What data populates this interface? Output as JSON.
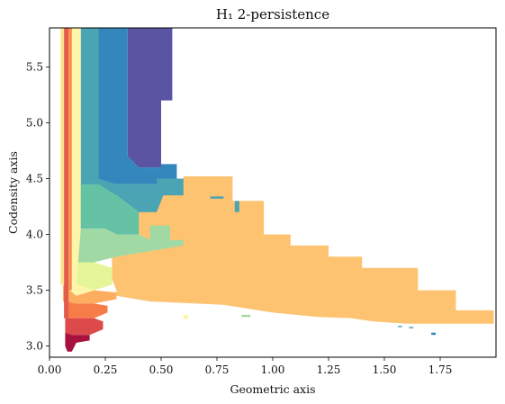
{
  "chart_data": {
    "type": "heatmap",
    "title": "H₁ 2-persistence",
    "xlabel": "Geometric axis",
    "ylabel": "Codensity axis",
    "xlim": [
      0.0,
      2.0
    ],
    "ylim": [
      2.9,
      5.85
    ],
    "xticks": [
      "0.00",
      "0.25",
      "0.50",
      "0.75",
      "1.00",
      "1.25",
      "1.50",
      "1.75"
    ],
    "xtick_values": [
      0.0,
      0.25,
      0.5,
      0.75,
      1.0,
      1.25,
      1.5,
      1.75
    ],
    "yticks": [
      "3.0",
      "3.5",
      "4.0",
      "4.5",
      "5.0",
      "5.5"
    ],
    "ytick_values": [
      3.0,
      3.5,
      4.0,
      4.5,
      5.0,
      5.5
    ],
    "grid": false,
    "legend": "none",
    "colormap": "Spectral",
    "regions": [
      {
        "name": "large-orange-region",
        "color": "#fdc371",
        "polygon": [
          [
            0.48,
            4.5
          ],
          [
            0.6,
            4.5
          ],
          [
            0.6,
            4.52
          ],
          [
            0.82,
            4.52
          ],
          [
            0.82,
            4.3
          ],
          [
            0.96,
            4.3
          ],
          [
            0.96,
            4.2
          ],
          [
            0.96,
            4.0
          ],
          [
            1.08,
            4.0
          ],
          [
            1.08,
            3.9
          ],
          [
            1.25,
            3.9
          ],
          [
            1.25,
            3.8
          ],
          [
            1.4,
            3.8
          ],
          [
            1.4,
            3.7
          ],
          [
            1.65,
            3.7
          ],
          [
            1.65,
            3.5
          ],
          [
            1.82,
            3.5
          ],
          [
            1.82,
            3.32
          ],
          [
            1.99,
            3.32
          ],
          [
            1.99,
            3.2
          ],
          [
            1.6,
            3.2
          ],
          [
            1.45,
            3.22
          ],
          [
            1.35,
            3.25
          ],
          [
            1.2,
            3.26
          ],
          [
            1.0,
            3.3
          ],
          [
            0.78,
            3.37
          ],
          [
            0.45,
            3.4
          ],
          [
            0.3,
            3.45
          ],
          [
            0.3,
            3.5
          ],
          [
            0.28,
            3.6
          ],
          [
            0.28,
            4.0
          ],
          [
            0.36,
            4.05
          ],
          [
            0.4,
            4.3
          ],
          [
            0.45,
            4.4
          ]
        ]
      },
      {
        "name": "dark-blue-purple-region",
        "color": "#5b54a2",
        "polygon": [
          [
            0.35,
            5.85
          ],
          [
            0.55,
            5.85
          ],
          [
            0.55,
            5.2
          ],
          [
            0.5,
            5.2
          ],
          [
            0.5,
            4.6
          ],
          [
            0.4,
            4.6
          ],
          [
            0.35,
            4.7
          ]
        ]
      },
      {
        "name": "blue-region",
        "color": "#3387bc",
        "polygon": [
          [
            0.2,
            5.85
          ],
          [
            0.35,
            5.85
          ],
          [
            0.35,
            4.7
          ],
          [
            0.4,
            4.6
          ],
          [
            0.5,
            4.6
          ],
          [
            0.5,
            4.45
          ],
          [
            0.4,
            4.45
          ],
          [
            0.3,
            4.45
          ],
          [
            0.2,
            4.5
          ]
        ]
      },
      {
        "name": "teal-region",
        "color": "#4ba4b3",
        "polygon": [
          [
            0.14,
            5.85
          ],
          [
            0.22,
            5.85
          ],
          [
            0.22,
            4.5
          ],
          [
            0.3,
            4.45
          ],
          [
            0.4,
            4.45
          ],
          [
            0.5,
            4.45
          ],
          [
            0.52,
            4.4
          ],
          [
            0.48,
            4.2
          ],
          [
            0.4,
            4.2
          ],
          [
            0.3,
            4.35
          ],
          [
            0.14,
            4.35
          ]
        ]
      },
      {
        "name": "green-teal-region",
        "color": "#66c2a5",
        "polygon": [
          [
            0.12,
            4.45
          ],
          [
            0.22,
            4.45
          ],
          [
            0.3,
            4.35
          ],
          [
            0.4,
            4.2
          ],
          [
            0.4,
            4.0
          ],
          [
            0.3,
            4.0
          ],
          [
            0.25,
            4.05
          ],
          [
            0.12,
            4.05
          ]
        ]
      },
      {
        "name": "light-green-region",
        "color": "#a1d9a4",
        "polygon": [
          [
            0.12,
            4.05
          ],
          [
            0.25,
            4.05
          ],
          [
            0.3,
            4.0
          ],
          [
            0.4,
            4.0
          ],
          [
            0.45,
            3.95
          ],
          [
            0.6,
            3.95
          ],
          [
            0.6,
            3.9
          ],
          [
            0.3,
            3.8
          ],
          [
            0.2,
            3.75
          ],
          [
            0.12,
            3.75
          ]
        ]
      },
      {
        "name": "yellow-green-region",
        "color": "#e6f598",
        "polygon": [
          [
            0.12,
            3.75
          ],
          [
            0.2,
            3.75
          ],
          [
            0.28,
            3.7
          ],
          [
            0.28,
            3.55
          ],
          [
            0.2,
            3.5
          ],
          [
            0.12,
            3.55
          ]
        ]
      },
      {
        "name": "pale-yellow-region",
        "color": "#fef5aa",
        "polygon": [
          [
            0.09,
            5.85
          ],
          [
            0.14,
            5.85
          ],
          [
            0.14,
            4.05
          ],
          [
            0.12,
            3.55
          ],
          [
            0.2,
            3.5
          ],
          [
            0.12,
            3.45
          ],
          [
            0.09,
            3.5
          ]
        ]
      },
      {
        "name": "light-orange-region",
        "color": "#fdad60",
        "polygon": [
          [
            0.06,
            3.55
          ],
          [
            0.12,
            3.45
          ],
          [
            0.2,
            3.5
          ],
          [
            0.3,
            3.48
          ],
          [
            0.3,
            3.42
          ],
          [
            0.2,
            3.38
          ],
          [
            0.12,
            3.38
          ],
          [
            0.06,
            3.4
          ]
        ]
      },
      {
        "name": "orange-region",
        "color": "#f67d4a",
        "polygon": [
          [
            0.07,
            3.4
          ],
          [
            0.12,
            3.38
          ],
          [
            0.2,
            3.38
          ],
          [
            0.26,
            3.36
          ],
          [
            0.26,
            3.3
          ],
          [
            0.2,
            3.25
          ],
          [
            0.12,
            3.25
          ],
          [
            0.07,
            3.25
          ]
        ]
      },
      {
        "name": "red-region",
        "color": "#dc4a4c",
        "polygon": [
          [
            0.07,
            3.25
          ],
          [
            0.2,
            3.25
          ],
          [
            0.24,
            3.22
          ],
          [
            0.24,
            3.15
          ],
          [
            0.18,
            3.1
          ],
          [
            0.1,
            3.1
          ],
          [
            0.07,
            3.12
          ]
        ]
      },
      {
        "name": "dark-red-region",
        "color": "#a8103e",
        "polygon": [
          [
            0.07,
            3.12
          ],
          [
            0.1,
            3.1
          ],
          [
            0.18,
            3.1
          ],
          [
            0.18,
            3.05
          ],
          [
            0.12,
            3.03
          ],
          [
            0.1,
            2.95
          ],
          [
            0.08,
            2.95
          ],
          [
            0.07,
            3.0
          ]
        ]
      },
      {
        "name": "left-red-strip",
        "color": "#e25b4b",
        "polygon": [
          [
            0.065,
            5.85
          ],
          [
            0.085,
            5.85
          ],
          [
            0.085,
            3.25
          ],
          [
            0.065,
            3.25
          ]
        ]
      },
      {
        "name": "left-orange-strip",
        "color": "#f98e52",
        "polygon": [
          [
            0.085,
            5.85
          ],
          [
            0.1,
            5.85
          ],
          [
            0.1,
            3.5
          ],
          [
            0.085,
            3.5
          ]
        ]
      },
      {
        "name": "left-yellow-strip",
        "color": "#fee08b",
        "polygon": [
          [
            0.05,
            5.85
          ],
          [
            0.065,
            5.85
          ],
          [
            0.065,
            3.55
          ],
          [
            0.05,
            3.55
          ]
        ]
      },
      {
        "name": "small-blue-patch",
        "color": "#3387bc",
        "polygon": [
          [
            0.5,
            4.63
          ],
          [
            0.57,
            4.63
          ],
          [
            0.57,
            4.5
          ],
          [
            0.5,
            4.5
          ]
        ]
      },
      {
        "name": "small-teal-patch",
        "color": "#4ba4b3",
        "polygon": [
          [
            0.48,
            4.5
          ],
          [
            0.6,
            4.5
          ],
          [
            0.6,
            4.35
          ],
          [
            0.48,
            4.35
          ]
        ]
      },
      {
        "name": "small-green-patch",
        "color": "#a1d9a4",
        "polygon": [
          [
            0.45,
            4.08
          ],
          [
            0.54,
            4.08
          ],
          [
            0.54,
            3.9
          ],
          [
            0.45,
            3.9
          ]
        ]
      },
      {
        "name": "thin-teal-bar",
        "color": "#4ba4b3",
        "polygon": [
          [
            0.72,
            4.34
          ],
          [
            0.78,
            4.34
          ],
          [
            0.78,
            4.32
          ],
          [
            0.72,
            4.32
          ]
        ]
      },
      {
        "name": "tiny-teal-bar",
        "color": "#4ba4b3",
        "polygon": [
          [
            0.83,
            4.3
          ],
          [
            0.85,
            4.3
          ],
          [
            0.85,
            4.2
          ],
          [
            0.83,
            4.2
          ]
        ]
      },
      {
        "name": "tiny-green-dash",
        "color": "#a1d9a4",
        "polygon": [
          [
            0.86,
            3.28
          ],
          [
            0.9,
            3.28
          ],
          [
            0.9,
            3.26
          ],
          [
            0.86,
            3.26
          ]
        ]
      },
      {
        "name": "tiny-blue-dash-1",
        "color": "#3387bc",
        "polygon": [
          [
            1.56,
            3.18
          ],
          [
            1.58,
            3.18
          ],
          [
            1.58,
            3.17
          ],
          [
            1.56,
            3.17
          ]
        ]
      },
      {
        "name": "tiny-blue-dash-2",
        "color": "#3387bc",
        "polygon": [
          [
            1.61,
            3.17
          ],
          [
            1.63,
            3.17
          ],
          [
            1.63,
            3.16
          ],
          [
            1.61,
            3.16
          ]
        ]
      },
      {
        "name": "tiny-blue-dash-3",
        "color": "#3387bc",
        "polygon": [
          [
            1.71,
            3.12
          ],
          [
            1.73,
            3.12
          ],
          [
            1.73,
            3.1
          ],
          [
            1.71,
            3.1
          ]
        ]
      },
      {
        "name": "tiny-yellow-dash",
        "color": "#fef5aa",
        "polygon": [
          [
            0.6,
            3.28
          ],
          [
            0.62,
            3.28
          ],
          [
            0.62,
            3.24
          ],
          [
            0.6,
            3.24
          ]
        ]
      }
    ]
  }
}
